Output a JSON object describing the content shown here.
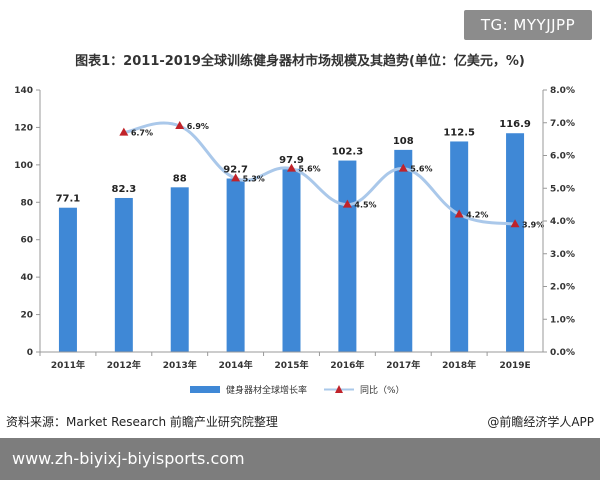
{
  "header_tag": "TG: MYYJJPP",
  "chart_data": {
    "type": "bar",
    "title": "图表1：2011-2019全球训练健身器材市场规模及其趋势(单位：亿美元，%)",
    "categories": [
      "2011年",
      "2012年",
      "2013年",
      "2014年",
      "2015年",
      "2016年",
      "2017年",
      "2018年",
      "2019E"
    ],
    "series": [
      {
        "name": "健身器材全球增长率",
        "kind": "bar",
        "axis": "left",
        "color": "#3f88d6",
        "values": [
          77.1,
          82.3,
          88,
          92.7,
          97.9,
          102.3,
          108,
          112.5,
          116.9
        ],
        "labels": [
          "77.1",
          "82.3",
          "88",
          "92.7",
          "97.9",
          "102.3",
          "108",
          "112.5",
          "116.9"
        ]
      },
      {
        "name": "同比（%）",
        "kind": "line",
        "axis": "right",
        "line_color": "#aac8ea",
        "marker_color": "#c0232a",
        "values": [
          null,
          6.7,
          6.9,
          5.3,
          5.6,
          4.5,
          5.6,
          4.2,
          3.9
        ],
        "labels": [
          "",
          "6.7%",
          "6.9%",
          "5.3%",
          "5.6%",
          "4.5%",
          "5.6%",
          "4.2%",
          "3.9%"
        ]
      }
    ],
    "y_left": {
      "min": 0,
      "max": 140,
      "ticks": [
        "0",
        "20",
        "40",
        "60",
        "80",
        "100",
        "120",
        "140"
      ]
    },
    "y_right": {
      "min": 0,
      "max": 8,
      "ticks": [
        "0.0%",
        "1.0%",
        "2.0%",
        "3.0%",
        "4.0%",
        "5.0%",
        "6.0%",
        "7.0%",
        "8.0%"
      ]
    },
    "legend_position": "bottom"
  },
  "source_text": "资料来源：Market Research 前瞻产业研究院整理",
  "credit_text": "@前瞻经济学人APP",
  "footer_url": "www.zh-biyixj-biyisports.com"
}
